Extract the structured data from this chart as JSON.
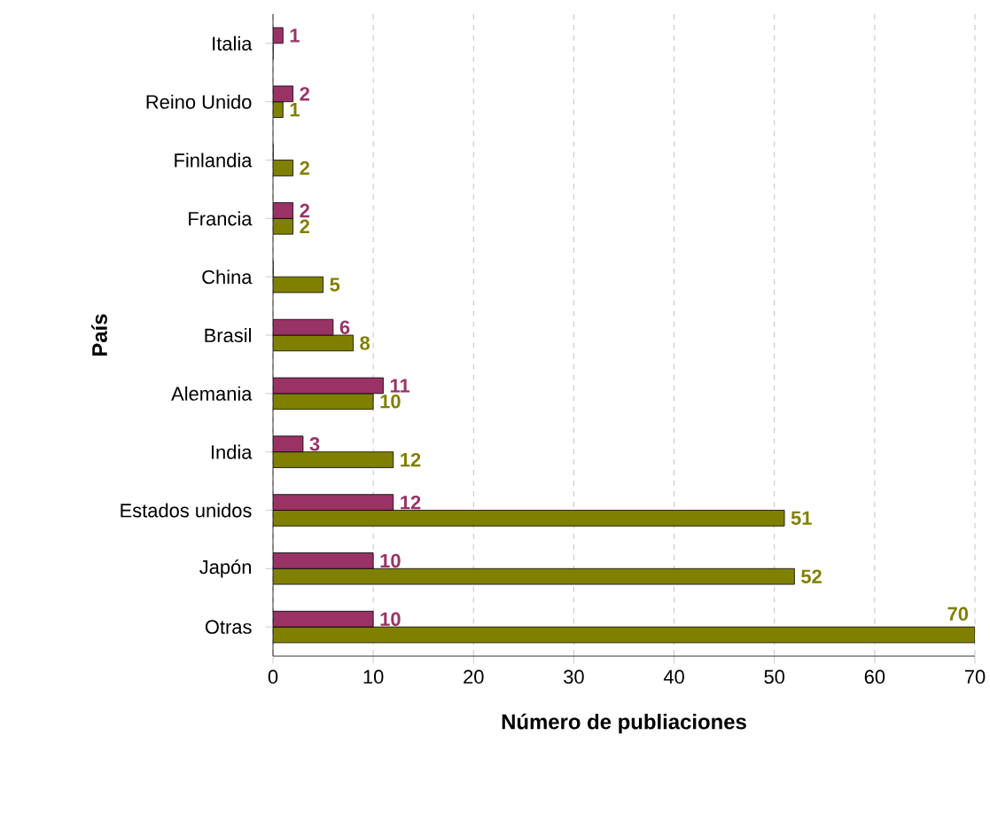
{
  "chart_data": {
    "type": "bar",
    "orientation": "horizontal",
    "xlabel": "Número de publiaciones",
    "ylabel": "País",
    "categories": [
      "Italia",
      "Reino Unido",
      "Finlandia",
      "Francia",
      "China",
      "Brasil",
      "Alemania",
      "India",
      "Estados unidos",
      "Japón",
      "Otras"
    ],
    "series": [
      {
        "color": "#808000",
        "values": [
          0,
          1,
          2,
          2,
          5,
          8,
          10,
          12,
          51,
          52,
          70
        ],
        "value_labels": [
          null,
          "1",
          "2",
          "2",
          "5",
          "8",
          "10",
          "12",
          "51",
          "52",
          "70"
        ]
      },
      {
        "color": "#993366",
        "values": [
          1,
          2,
          0,
          2,
          0,
          6,
          11,
          3,
          12,
          10,
          10
        ],
        "value_labels": [
          "1",
          "2",
          null,
          "2",
          null,
          "6",
          "11",
          "3",
          "12",
          "10",
          "10"
        ]
      }
    ],
    "xlim": [
      0,
      70
    ],
    "xticks": [
      0,
      10,
      20,
      30,
      40,
      50,
      60,
      70
    ],
    "grid": "x",
    "line_style": "dashed"
  }
}
